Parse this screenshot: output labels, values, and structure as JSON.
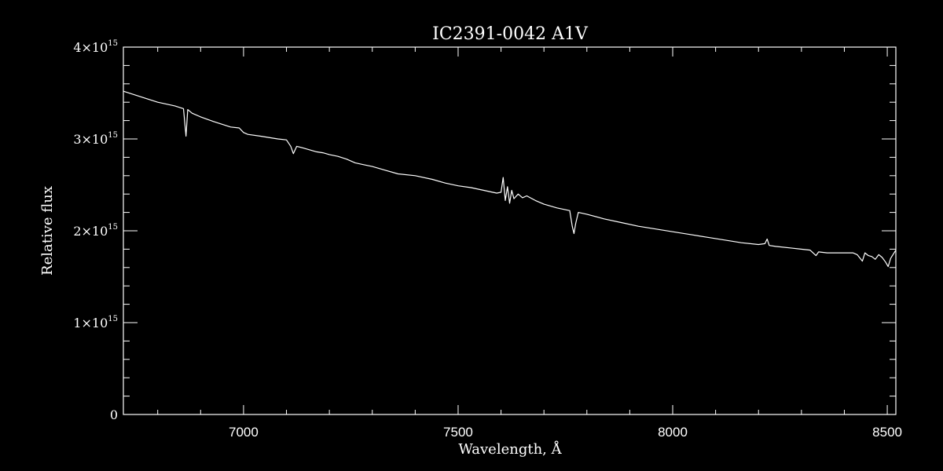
{
  "chart_data": {
    "type": "line",
    "title": "IC2391-0042  A1V",
    "xlabel": "Wavelength, Å",
    "ylabel": "Relative flux",
    "xlim": [
      6720,
      8520
    ],
    "ylim": [
      0,
      4000000000000000.0
    ],
    "x_ticks": [
      {
        "value": 7000,
        "label": "7000"
      },
      {
        "value": 7500,
        "label": "7500"
      },
      {
        "value": 8000,
        "label": "8000"
      },
      {
        "value": 8500,
        "label": "8500"
      }
    ],
    "y_ticks": [
      {
        "value": 0,
        "base": "0",
        "exp": ""
      },
      {
        "value": 1000000000000000.0,
        "base": "1×10",
        "exp": "15"
      },
      {
        "value": 2000000000000000.0,
        "base": "2×10",
        "exp": "15"
      },
      {
        "value": 3000000000000000.0,
        "base": "3×10",
        "exp": "15"
      },
      {
        "value": 4000000000000000.0,
        "base": "4×10",
        "exp": "15"
      }
    ],
    "grid": false,
    "colors": {
      "background": "#000000",
      "foreground": "#ffffff"
    },
    "series": [
      {
        "x": [
          6720,
          6760,
          6800,
          6840,
          6860,
          6866,
          6870,
          6880,
          6900,
          6930,
          6950,
          6970,
          6990,
          7000,
          7010,
          7040,
          7080,
          7100,
          7110,
          7116,
          7124,
          7140,
          7170,
          7185,
          7200,
          7220,
          7240,
          7260,
          7280,
          7300,
          7330,
          7360,
          7400,
          7440,
          7470,
          7500,
          7530,
          7560,
          7590,
          7600,
          7605,
          7610,
          7615,
          7620,
          7625,
          7630,
          7640,
          7650,
          7660,
          7680,
          7700,
          7730,
          7760,
          7766,
          7770,
          7774,
          7780,
          7800,
          7840,
          7880,
          7920,
          7960,
          8000,
          8040,
          8080,
          8120,
          8160,
          8200,
          8215,
          8220,
          8225,
          8240,
          8280,
          8320,
          8334,
          8340,
          8360,
          8400,
          8420,
          8430,
          8442,
          8448,
          8456,
          8464,
          8472,
          8480,
          8488,
          8496,
          8502,
          8508,
          8520
        ],
        "y": [
          3520000000000000.0,
          3460000000000000.0,
          3400000000000000.0,
          3360000000000000.0,
          3330000000000000.0,
          3030000000000000.0,
          3320000000000000.0,
          3280000000000000.0,
          3240000000000000.0,
          3190000000000000.0,
          3160000000000000.0,
          3130000000000000.0,
          3120000000000000.0,
          3070000000000000.0,
          3050000000000000.0,
          3030000000000000.0,
          3000000000000000.0,
          2990000000000000.0,
          2920000000000000.0,
          2840000000000000.0,
          2920000000000000.0,
          2900000000000000.0,
          2860000000000000.0,
          2850000000000000.0,
          2830000000000000.0,
          2810000000000000.0,
          2780000000000000.0,
          2740000000000000.0,
          2720000000000000.0,
          2700000000000000.0,
          2660000000000000.0,
          2620000000000000.0,
          2600000000000000.0,
          2560000000000000.0,
          2520000000000000.0,
          2490000000000000.0,
          2470000000000000.0,
          2440000000000000.0,
          2410000000000000.0,
          2420000000000000.0,
          2580000000000000.0,
          2330000000000000.0,
          2480000000000000.0,
          2300000000000000.0,
          2440000000000000.0,
          2350000000000000.0,
          2400000000000000.0,
          2360000000000000.0,
          2380000000000000.0,
          2330000000000000.0,
          2290000000000000.0,
          2250000000000000.0,
          2220000000000000.0,
          2050000000000000.0,
          1970000000000000.0,
          2080000000000000.0,
          2200000000000000.0,
          2180000000000000.0,
          2130000000000000.0,
          2090000000000000.0,
          2050000000000000.0,
          2020000000000000.0,
          1990000000000000.0,
          1960000000000000.0,
          1930000000000000.0,
          1900000000000000.0,
          1870000000000000.0,
          1850000000000000.0,
          1860000000000000.0,
          1910000000000000.0,
          1840000000000000.0,
          1830000000000000.0,
          1810000000000000.0,
          1790000000000000.0,
          1730000000000000.0,
          1770000000000000.0,
          1760000000000000.0,
          1760000000000000.0,
          1760000000000000.0,
          1740000000000000.0,
          1670000000000000.0,
          1760000000000000.0,
          1730000000000000.0,
          1720000000000000.0,
          1690000000000000.0,
          1740000000000000.0,
          1710000000000000.0,
          1660000000000000.0,
          1610000000000000.0,
          1700000000000000.0,
          1790000000000000.0
        ]
      }
    ]
  }
}
